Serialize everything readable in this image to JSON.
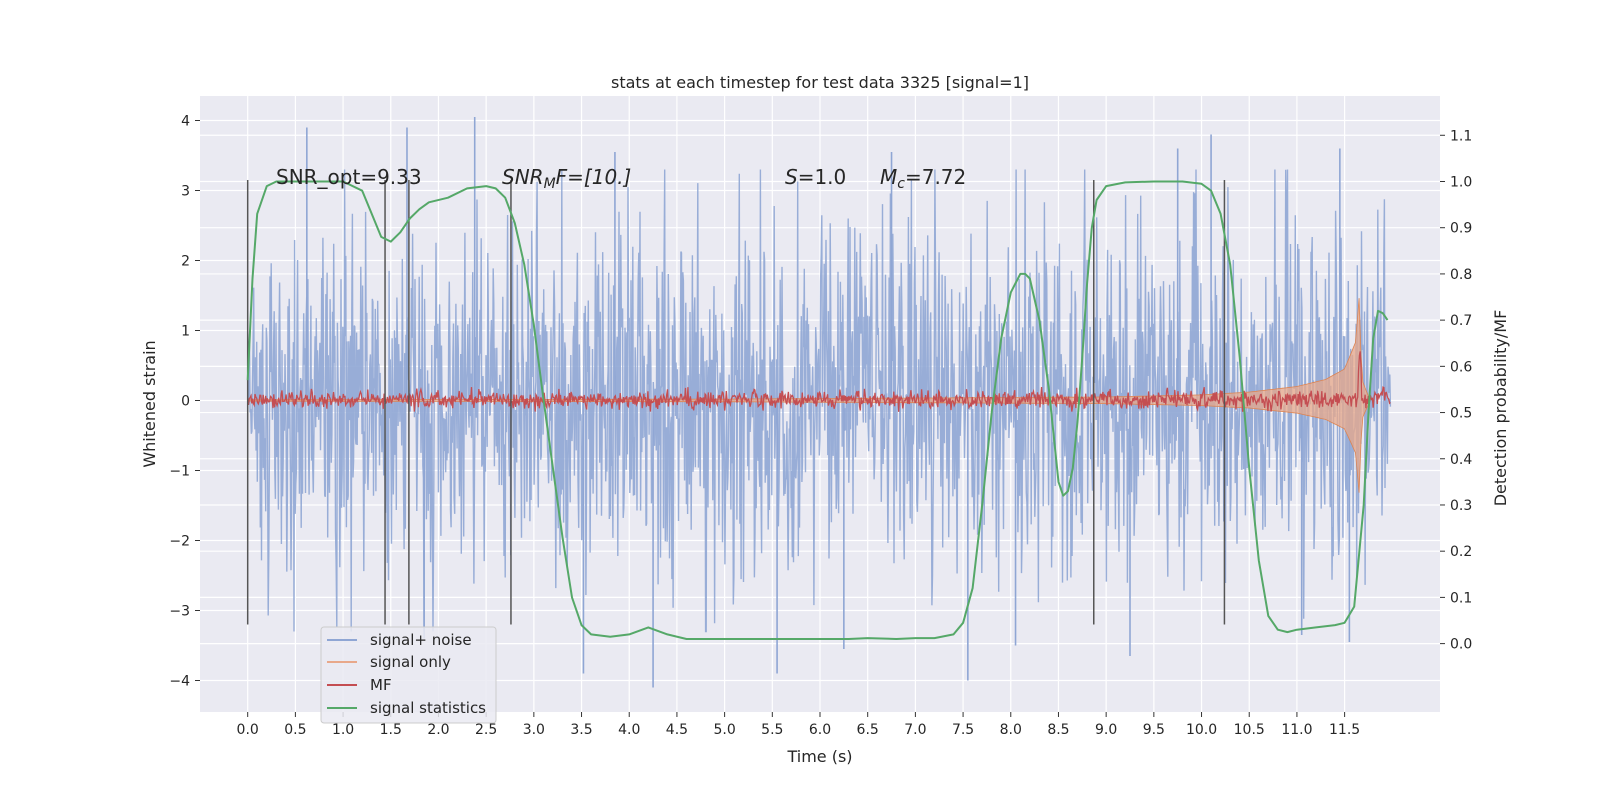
{
  "chart_data": {
    "type": "line",
    "title": "stats at each timestep for test data 3325 [signal=1]",
    "xlabel": "Time (s)",
    "ylabel": "Whitened strain",
    "y2label": "Detection probability/MF",
    "xlim": [
      -0.5,
      12.5
    ],
    "ylim": [
      -4.45,
      4.35
    ],
    "y2lim": [
      -0.148,
      1.185
    ],
    "xticks": [
      0.0,
      0.5,
      1.0,
      1.5,
      2.0,
      2.5,
      3.0,
      3.5,
      4.0,
      4.5,
      5.0,
      5.5,
      6.0,
      6.5,
      7.0,
      7.5,
      8.0,
      8.5,
      9.0,
      9.5,
      10.0,
      10.5,
      11.0,
      11.5
    ],
    "xtick_labels": [
      "0.0",
      "0.5",
      "1.0",
      "1.5",
      "2.0",
      "2.5",
      "3.0",
      "3.5",
      "4.0",
      "4.5",
      "5.0",
      "5.5",
      "6.0",
      "6.5",
      "7.0",
      "7.5",
      "8.0",
      "8.5",
      "9.0",
      "9.5",
      "10.0",
      "10.5",
      "11.0",
      "11.5"
    ],
    "yticks": [
      -4,
      -3,
      -2,
      -1,
      0,
      1,
      2,
      3,
      4
    ],
    "ytick_labels": [
      "−4",
      "−3",
      "−2",
      "−1",
      "0",
      "1",
      "2",
      "3",
      "4"
    ],
    "y2ticks": [
      0.0,
      0.1,
      0.2,
      0.3,
      0.4,
      0.5,
      0.6,
      0.7,
      0.8,
      0.9,
      1.0,
      1.1
    ],
    "y2tick_labels": [
      "0.0",
      "0.1",
      "0.2",
      "0.3",
      "0.4",
      "0.5",
      "0.6",
      "0.7",
      "0.8",
      "0.9",
      "1.0",
      "1.1"
    ],
    "grid": true,
    "legend_position": "lower-left",
    "annotations": {
      "snr_opt": "SNR_opt=9.33",
      "snr_mf_sym": "SNR",
      "snr_mf_sub": "M",
      "snr_mf_rest": "F=[10.]",
      "s_sym": "S",
      "s_rest": "=1.0",
      "mc_sym": "M",
      "mc_sub": "c",
      "mc_rest": "=7.72"
    },
    "vertical_lines_x": [
      0.0,
      1.44,
      1.69,
      2.76,
      8.87,
      10.24
    ],
    "vertical_lines_yrange": [
      -3.2,
      3.15
    ],
    "series": [
      {
        "name": "signal+ noise",
        "color": "#8fa6d4",
        "axis": "left",
        "style": "noise",
        "x_start": 0.0,
        "x_end": 11.98,
        "typical_extent": 2.0,
        "peak_values": [
          {
            "x": 0.62,
            "y": 3.9
          },
          {
            "x": 1.67,
            "y": 3.9
          },
          {
            "x": 2.38,
            "y": 4.05
          },
          {
            "x": 11.45,
            "y": 3.6
          },
          {
            "x": 11.05,
            "y": -3.35
          },
          {
            "x": 11.55,
            "y": -3.45
          },
          {
            "x": 4.25,
            "y": -4.1
          },
          {
            "x": 3.52,
            "y": -3.9
          },
          {
            "x": 7.55,
            "y": -4.0
          },
          {
            "x": 5.55,
            "y": -3.9
          },
          {
            "x": 9.25,
            "y": -3.65
          },
          {
            "x": 8.05,
            "y": -3.5
          },
          {
            "x": 6.25,
            "y": -3.55
          },
          {
            "x": 1.85,
            "y": -3.4
          },
          {
            "x": 10.1,
            "y": 3.8
          },
          {
            "x": 9.75,
            "y": 3.6
          },
          {
            "x": 3.85,
            "y": 3.55
          },
          {
            "x": 6.75,
            "y": 3.55
          }
        ]
      },
      {
        "name": "signal only",
        "color": "#dd8452",
        "axis": "left",
        "style": "chirp",
        "amplitude_envelope": [
          [
            0.0,
            0.01
          ],
          [
            5.0,
            0.02
          ],
          [
            9.0,
            0.05
          ],
          [
            10.0,
            0.08
          ],
          [
            10.5,
            0.12
          ],
          [
            11.0,
            0.2
          ],
          [
            11.3,
            0.3
          ],
          [
            11.5,
            0.45
          ],
          [
            11.62,
            0.85
          ],
          [
            11.65,
            1.55
          ],
          [
            11.68,
            0.3
          ],
          [
            11.75,
            0.06
          ]
        ]
      },
      {
        "name": "MF",
        "color": "#c44e52",
        "axis": "right",
        "style": "noise",
        "x_start": 0.0,
        "x_end": 11.98,
        "baseline": 0.5,
        "range": [
          0.5,
          0.555
        ],
        "spike": {
          "x": 11.66,
          "y": 0.565
        }
      },
      {
        "name": "signal statistics",
        "color": "#55a868",
        "axis": "right",
        "style": "line",
        "x": [
          0.0,
          0.05,
          0.1,
          0.2,
          0.3,
          0.5,
          1.0,
          1.2,
          1.3,
          1.4,
          1.5,
          1.6,
          1.7,
          1.8,
          1.9,
          2.1,
          2.3,
          2.5,
          2.6,
          2.7,
          2.8,
          2.9,
          3.0,
          3.1,
          3.2,
          3.3,
          3.4,
          3.5,
          3.6,
          3.8,
          4.0,
          4.2,
          4.4,
          4.6,
          5.0,
          5.5,
          6.0,
          6.3,
          6.5,
          6.8,
          7.0,
          7.2,
          7.4,
          7.5,
          7.6,
          7.7,
          7.8,
          7.9,
          8.0,
          8.1,
          8.15,
          8.2,
          8.3,
          8.4,
          8.45,
          8.5,
          8.55,
          8.6,
          8.65,
          8.7,
          8.75,
          8.8,
          8.85,
          8.9,
          9.0,
          9.2,
          9.5,
          9.8,
          10.0,
          10.1,
          10.2,
          10.3,
          10.4,
          10.5,
          10.6,
          10.7,
          10.8,
          10.9,
          11.0,
          11.2,
          11.4,
          11.5,
          11.6,
          11.7,
          11.75,
          11.8,
          11.85,
          11.9,
          11.95
        ],
        "y": [
          0.57,
          0.79,
          0.93,
          0.99,
          1.0,
          1.0,
          1.0,
          0.98,
          0.93,
          0.88,
          0.87,
          0.89,
          0.92,
          0.94,
          0.955,
          0.965,
          0.985,
          0.99,
          0.985,
          0.965,
          0.91,
          0.82,
          0.69,
          0.53,
          0.38,
          0.23,
          0.1,
          0.04,
          0.02,
          0.015,
          0.02,
          0.035,
          0.02,
          0.01,
          0.01,
          0.01,
          0.01,
          0.01,
          0.012,
          0.01,
          0.012,
          0.012,
          0.02,
          0.045,
          0.12,
          0.3,
          0.5,
          0.66,
          0.76,
          0.8,
          0.8,
          0.79,
          0.7,
          0.55,
          0.45,
          0.35,
          0.32,
          0.33,
          0.38,
          0.48,
          0.62,
          0.78,
          0.9,
          0.96,
          0.99,
          0.998,
          1.0,
          1.0,
          0.995,
          0.98,
          0.93,
          0.82,
          0.62,
          0.38,
          0.18,
          0.06,
          0.03,
          0.025,
          0.03,
          0.035,
          0.04,
          0.045,
          0.08,
          0.3,
          0.5,
          0.66,
          0.72,
          0.715,
          0.7
        ]
      }
    ]
  }
}
